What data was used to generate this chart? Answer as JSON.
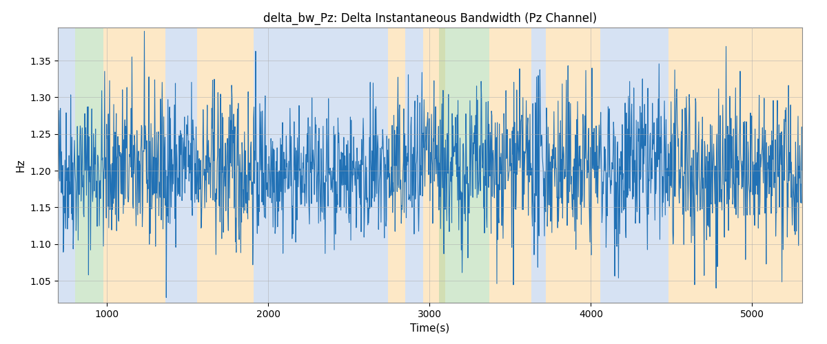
{
  "title": "delta_bw_Pz: Delta Instantaneous Bandwidth (Pz Channel)",
  "xlabel": "Time(s)",
  "ylabel": "Hz",
  "xlim": [
    695,
    5310
  ],
  "ylim": [
    1.02,
    1.395
  ],
  "yticks": [
    1.05,
    1.1,
    1.15,
    1.2,
    1.25,
    1.3,
    1.35
  ],
  "xticks": [
    1000,
    2000,
    3000,
    4000,
    5000
  ],
  "line_color": "#2171b5",
  "line_width": 0.8,
  "bg_color": "#ffffff",
  "grid_color": "#aaaaaa",
  "seed": 42,
  "n_points": 1800,
  "signal_mean": 1.2,
  "signal_std": 0.055,
  "background_bands": [
    {
      "xmin": 695,
      "xmax": 800,
      "color": "#aec6e8",
      "alpha": 0.5
    },
    {
      "xmin": 800,
      "xmax": 975,
      "color": "#a8d5a2",
      "alpha": 0.5
    },
    {
      "xmin": 975,
      "xmax": 1360,
      "color": "#fdd9a0",
      "alpha": 0.6
    },
    {
      "xmin": 1360,
      "xmax": 1560,
      "color": "#aec6e8",
      "alpha": 0.5
    },
    {
      "xmin": 1560,
      "xmax": 1910,
      "color": "#fdd9a0",
      "alpha": 0.6
    },
    {
      "xmin": 1910,
      "xmax": 2740,
      "color": "#aec6e8",
      "alpha": 0.5
    },
    {
      "xmin": 2740,
      "xmax": 2850,
      "color": "#fdd9a0",
      "alpha": 0.6
    },
    {
      "xmin": 2850,
      "xmax": 2960,
      "color": "#aec6e8",
      "alpha": 0.5
    },
    {
      "xmin": 2960,
      "xmax": 3095,
      "color": "#fdd9a0",
      "alpha": 0.6
    },
    {
      "xmin": 3095,
      "xmax": 3095,
      "color": "#aec6e8",
      "alpha": 0.5
    },
    {
      "xmin": 3060,
      "xmax": 3370,
      "color": "#a8d5a2",
      "alpha": 0.5
    },
    {
      "xmin": 3370,
      "xmax": 3630,
      "color": "#fdd9a0",
      "alpha": 0.6
    },
    {
      "xmin": 3630,
      "xmax": 3720,
      "color": "#aec6e8",
      "alpha": 0.5
    },
    {
      "xmin": 3720,
      "xmax": 4060,
      "color": "#fdd9a0",
      "alpha": 0.6
    },
    {
      "xmin": 4060,
      "xmax": 4480,
      "color": "#aec6e8",
      "alpha": 0.5
    },
    {
      "xmin": 4480,
      "xmax": 5310,
      "color": "#fdd9a0",
      "alpha": 0.6
    }
  ]
}
